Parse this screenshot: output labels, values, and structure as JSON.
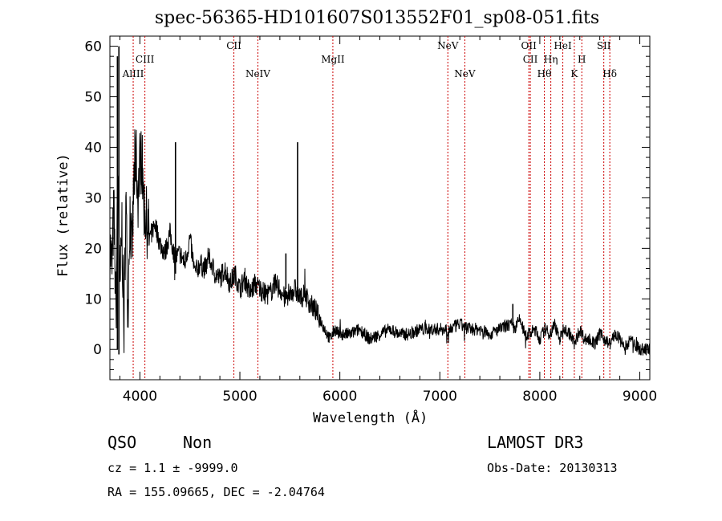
{
  "chart_data": {
    "type": "line",
    "title": "spec-56365-HD101607S013552F01_sp08-051.fits",
    "xlabel": "Wavelength (Å)",
    "ylabel": "Flux (relative)",
    "xlim": [
      3700,
      9100
    ],
    "ylim": [
      -6,
      62
    ],
    "xticks": [
      4000,
      5000,
      6000,
      7000,
      8000,
      9000
    ],
    "yticks": [
      0,
      10,
      20,
      30,
      40,
      50,
      60
    ],
    "grid": false,
    "series": [
      {
        "x": [
          3700,
          3720,
          3740,
          3760,
          3780,
          3800,
          3820,
          3840,
          3860,
          3880,
          3900,
          3920,
          3940,
          3960,
          3980,
          4000,
          4020,
          4040,
          4060,
          4080,
          4100,
          4150,
          4200,
          4250,
          4300,
          4350,
          4400,
          4450,
          4500,
          4550,
          4600,
          4650,
          4700,
          4750,
          4800,
          4850,
          4900,
          4950,
          5000,
          5050,
          5100,
          5150,
          5200,
          5250,
          5300,
          5350,
          5400,
          5450,
          5500,
          5550,
          5600,
          5650,
          5700,
          5750,
          5800,
          5850,
          5900,
          5950,
          6000,
          6100,
          6200,
          6300,
          6400,
          6500,
          6600,
          6700,
          6800,
          6900,
          7000,
          7100,
          7200,
          7300,
          7400,
          7500,
          7600,
          7700,
          7750,
          7800,
          7850,
          7900,
          7950,
          8000,
          8050,
          8100,
          8150,
          8200,
          8250,
          8300,
          8350,
          8400,
          8450,
          8500,
          8550,
          8600,
          8650,
          8700,
          8750,
          8800,
          8850,
          8900,
          8950,
          9000
        ],
        "values": [
          21,
          16,
          28,
          6,
          35,
          10,
          25,
          3,
          30,
          8,
          28,
          18,
          33,
          39,
          30,
          37,
          38,
          29,
          26,
          24,
          22,
          25,
          21,
          19,
          23,
          18,
          19,
          17,
          22,
          15,
          17,
          16,
          18,
          15,
          14,
          16,
          13,
          15,
          12,
          14,
          11,
          13,
          12,
          11,
          11,
          13,
          12,
          10,
          11,
          12,
          10,
          11,
          9,
          8,
          6,
          4,
          2,
          4,
          3,
          3,
          4,
          2,
          3,
          4,
          3,
          3,
          4,
          4,
          4,
          4,
          5,
          4,
          4,
          3,
          4,
          5,
          4,
          6,
          3,
          3,
          4,
          2,
          4,
          3,
          5,
          2,
          4,
          3,
          1,
          4,
          2,
          2,
          1,
          3,
          2,
          1,
          3,
          2,
          0,
          2,
          1,
          0
        ]
      }
    ],
    "spikes": [
      {
        "x": 3775,
        "y": 58,
        "base": 0
      },
      {
        "x": 3790,
        "y": 60,
        "base": -1
      },
      {
        "x": 4356,
        "y": 41,
        "base": 15
      },
      {
        "x": 5577,
        "y": 41,
        "base": 12
      },
      {
        "x": 5460,
        "y": 19,
        "base": 12
      },
      {
        "x": 7730,
        "y": 9,
        "base": 5
      }
    ],
    "lines": [
      {
        "label": "AlIII",
        "x": 3933,
        "row": 2
      },
      {
        "label": "CIII",
        "x": 4050,
        "row": 1
      },
      {
        "label": "CII",
        "x": 4940,
        "row": 0
      },
      {
        "label": "NeIV",
        "x": 5180,
        "row": 2
      },
      {
        "label": "MgII",
        "x": 5930,
        "row": 1
      },
      {
        "label": "NeV",
        "x": 7080,
        "row": 0
      },
      {
        "label": "NeV",
        "x": 7250,
        "row": 2
      },
      {
        "label": "OII",
        "x": 7890,
        "row": 0
      },
      {
        "label": "CII",
        "x": 7905,
        "row": 1
      },
      {
        "label": "Hθ",
        "x": 8045,
        "row": 2
      },
      {
        "label": "Hη",
        "x": 8110,
        "row": 1
      },
      {
        "label": "HeI",
        "x": 8230,
        "row": 0
      },
      {
        "label": "K",
        "x": 8345,
        "row": 2
      },
      {
        "label": "H",
        "x": 8420,
        "row": 1
      },
      {
        "label": "SII",
        "x": 8640,
        "row": 0
      },
      {
        "label": "Hδ",
        "x": 8700,
        "row": 2
      }
    ],
    "line_color": "#cc0000"
  },
  "info": {
    "class": "QSO",
    "subclass": "Non",
    "survey": "LAMOST DR3",
    "cz": "cz = 1.1 ± -9999.0",
    "obs_date": "Obs-Date: 20130313",
    "radec": "RA = 155.09665, DEC =  -2.04764"
  }
}
